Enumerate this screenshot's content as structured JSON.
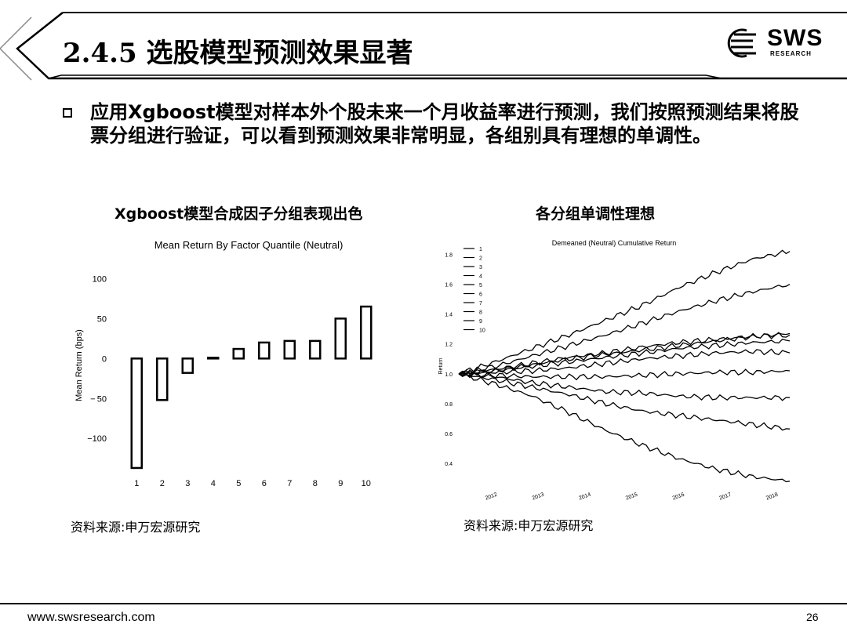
{
  "header": {
    "title": "2.4.5 选股模型预测效果显著"
  },
  "logo": {
    "name": "SWS",
    "sub": "RESEARCH"
  },
  "bullet": "应用Xgboost模型对样本外个股未来一个月收益率进行预测，我们按照预测结果将股票分组进行验证，可以看到预测效果非常明显，各组别具有理想的单调性。",
  "left_panel": {
    "subtitle": "Xgboost模型合成因子分组表现出色",
    "source": "资料来源:申万宏源研究"
  },
  "right_panel": {
    "subtitle": "各分组单调性理想",
    "source": "资料来源:申万宏源研究"
  },
  "footer": {
    "url": "www.swsresearch.com",
    "page": "26"
  },
  "chart_data": [
    {
      "type": "bar",
      "title": "Mean Return By Factor Quantile (Neutral)",
      "ylabel": "Mean Return (bps)",
      "xlabel": "",
      "categories": [
        "1",
        "2",
        "3",
        "4",
        "5",
        "6",
        "7",
        "8",
        "9",
        "10"
      ],
      "values": [
        -137,
        -52,
        -18,
        1,
        12,
        20,
        22,
        22,
        50,
        65
      ],
      "ylim": [
        -140,
        120
      ],
      "yticks": [
        100,
        50,
        0,
        -50,
        -100
      ],
      "ytick_labels": [
        "100",
        "50",
        "0",
        "− 50",
        "−100"
      ],
      "grid": false
    },
    {
      "type": "line",
      "title": "Demeaned (Neutral) Cumulative Return",
      "ylabel": "Return",
      "xlabel": "",
      "x_ticks": [
        "2012",
        "2013",
        "2014",
        "2015",
        "2016",
        "2017",
        "2018"
      ],
      "yticks": [
        1.8,
        1.6,
        1.4,
        1.2,
        1.0,
        0.8,
        0.6,
        0.4
      ],
      "ylim": [
        0.3,
        1.85
      ],
      "legend_position": "top-left",
      "grid": false,
      "series": [
        {
          "name": "1",
          "values": [
            1.0,
            0.93,
            0.85,
            0.74,
            0.62,
            0.52,
            0.43,
            0.36,
            0.31,
            0.28
          ]
        },
        {
          "name": "2",
          "values": [
            1.0,
            0.96,
            0.91,
            0.86,
            0.8,
            0.75,
            0.72,
            0.69,
            0.66,
            0.63
          ]
        },
        {
          "name": "3",
          "values": [
            1.0,
            0.98,
            0.94,
            0.91,
            0.88,
            0.87,
            0.85,
            0.84,
            0.84,
            0.84
          ]
        },
        {
          "name": "4",
          "values": [
            1.0,
            0.99,
            0.98,
            0.98,
            0.98,
            0.99,
            1.0,
            1.01,
            1.01,
            1.02
          ]
        },
        {
          "name": "5",
          "values": [
            1.0,
            1.01,
            1.02,
            1.04,
            1.07,
            1.1,
            1.12,
            1.14,
            1.15,
            1.14
          ]
        },
        {
          "name": "6",
          "values": [
            1.0,
            1.02,
            1.05,
            1.08,
            1.11,
            1.14,
            1.17,
            1.19,
            1.21,
            1.22
          ]
        },
        {
          "name": "7",
          "values": [
            1.0,
            1.02,
            1.06,
            1.1,
            1.13,
            1.16,
            1.19,
            1.22,
            1.25,
            1.27
          ]
        },
        {
          "name": "8",
          "values": [
            1.0,
            1.03,
            1.07,
            1.11,
            1.14,
            1.18,
            1.21,
            1.23,
            1.25,
            1.26
          ]
        },
        {
          "name": "9",
          "values": [
            1.0,
            1.05,
            1.12,
            1.19,
            1.26,
            1.34,
            1.42,
            1.49,
            1.55,
            1.6
          ]
        },
        {
          "name": "10",
          "values": [
            1.0,
            1.08,
            1.17,
            1.26,
            1.36,
            1.46,
            1.58,
            1.68,
            1.77,
            1.82
          ]
        }
      ]
    }
  ]
}
